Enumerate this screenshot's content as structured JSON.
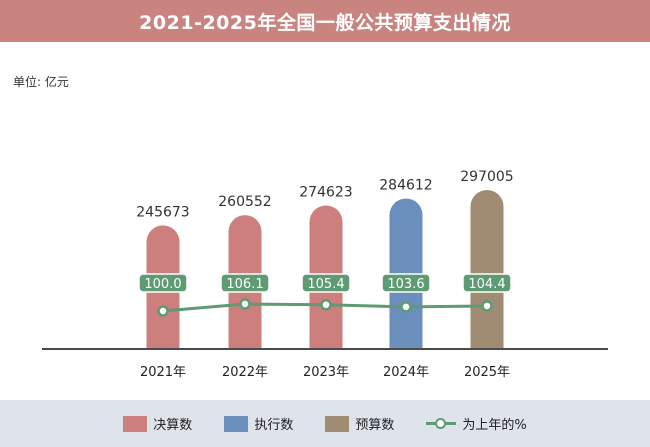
{
  "title": "2021-2025年全国一般公共预算支出情况",
  "unit_label": "单位: 亿元",
  "colors": {
    "final": "#cc7f7c",
    "executed": "#6b8fbd",
    "budget": "#a08c73",
    "line": "#5e9b73"
  },
  "legend": [
    {
      "label": "决算数",
      "kind": "final"
    },
    {
      "label": "执行数",
      "kind": "executed"
    },
    {
      "label": "预算数",
      "kind": "budget"
    },
    {
      "label": "为上年的%",
      "kind": "line"
    }
  ],
  "chart_data": {
    "type": "bar",
    "categories": [
      "2021年",
      "2022年",
      "2023年",
      "2024年",
      "2025年"
    ],
    "series": [
      {
        "name": "支出",
        "values": [
          245673,
          260552,
          274623,
          284612,
          297005
        ],
        "kinds": [
          "final",
          "final",
          "final",
          "executed",
          "budget"
        ]
      },
      {
        "name": "为上年的%",
        "type": "line",
        "values": [
          100.0,
          106.1,
          105.4,
          103.6,
          104.4
        ],
        "labels": [
          "100.0",
          "106.1",
          "105.4",
          "103.6",
          "104.4"
        ]
      }
    ],
    "ylabel": "单位: 亿元",
    "grid": false,
    "legend_position": "bottom"
  }
}
